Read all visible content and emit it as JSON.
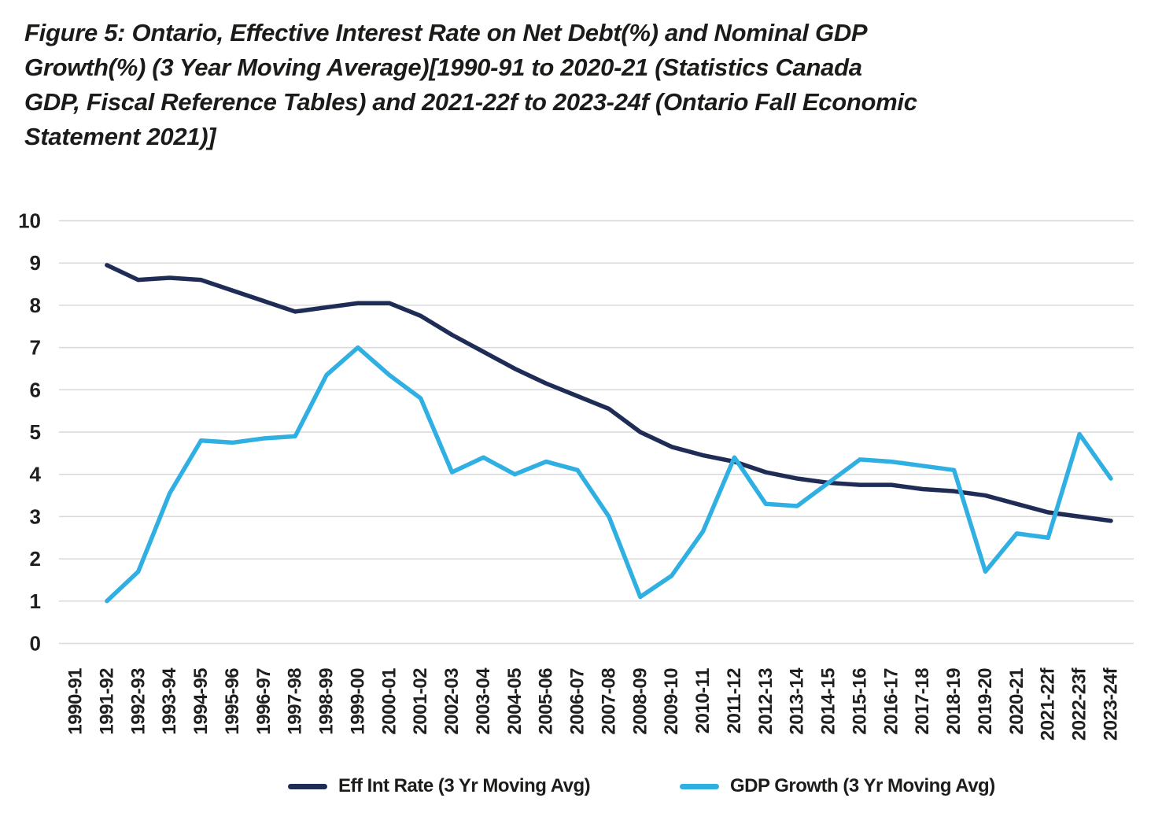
{
  "title_lines": [
    "Figure 5: Ontario, Effective Interest Rate on Net Debt(%) and Nominal  GDP",
    "Growth(%)  (3 Year Moving Average)[1990-91 to 2020-21 (Statistics Canada",
    "GDP, Fiscal Reference Tables) and 2021-22f to 2023-24f (Ontario Fall Economic",
    "Statement 2021)]"
  ],
  "colors": {
    "eff_int_rate": "#1f2c55",
    "gdp_growth": "#2fafe2",
    "gridline": "#d9d9d9",
    "axis_text": "#1f1f1f",
    "title_text": "#1b1b19"
  },
  "chart_data": {
    "type": "line",
    "title": "Figure 5: Ontario, Effective Interest Rate on Net Debt(%) and Nominal GDP Growth(%) (3 Year Moving Average)[1990-91 to 2020-21 (Statistics Canada GDP, Fiscal Reference Tables) and 2021-22f to 2023-24f (Ontario Fall Economic Statement 2021)]",
    "xlabel": "",
    "ylabel": "",
    "ylim": [
      0,
      10
    ],
    "y_ticks": [
      0,
      1,
      2,
      3,
      4,
      5,
      6,
      7,
      8,
      9,
      10
    ],
    "grid": "horizontal",
    "legend_position": "bottom",
    "categories": [
      "1990-91",
      "1991-92",
      "1992-93",
      "1993-94",
      "1994-95",
      "1995-96",
      "1996-97",
      "1997-98",
      "1998-99",
      "1999-00",
      "2000-01",
      "2001-02",
      "2002-03",
      "2003-04",
      "2004-05",
      "2005-06",
      "2006-07",
      "2007-08",
      "2008-09",
      "2009-10",
      "2010-11",
      "2011-12",
      "2012-13",
      "2013-14",
      "2014-15",
      "2015-16",
      "2016-17",
      "2017-18",
      "2018-19",
      "2019-20",
      "2020-21",
      "2021-22f",
      "2022-23f",
      "2023-24f"
    ],
    "series": [
      {
        "name": "Eff Int Rate (3 Yr Moving Avg)",
        "color": "#1f2c55",
        "values": [
          null,
          8.95,
          8.6,
          8.65,
          8.6,
          8.35,
          8.1,
          7.85,
          7.95,
          8.05,
          8.05,
          7.75,
          7.3,
          6.9,
          6.5,
          6.15,
          5.85,
          5.55,
          5.0,
          4.65,
          4.45,
          4.3,
          4.05,
          3.9,
          3.8,
          3.75,
          3.75,
          3.65,
          3.6,
          3.5,
          3.3,
          3.1,
          3.0,
          2.9
        ]
      },
      {
        "name": "GDP Growth (3 Yr Moving Avg)",
        "color": "#2fafe2",
        "values": [
          null,
          1.0,
          1.7,
          3.55,
          4.8,
          4.75,
          4.85,
          4.9,
          6.35,
          7.0,
          6.35,
          5.8,
          4.05,
          4.4,
          4.0,
          4.3,
          4.1,
          3.0,
          1.1,
          1.6,
          2.65,
          4.4,
          3.3,
          3.25,
          3.8,
          4.35,
          4.3,
          4.2,
          4.1,
          1.7,
          2.6,
          2.5,
          4.95,
          3.9
        ]
      }
    ]
  }
}
